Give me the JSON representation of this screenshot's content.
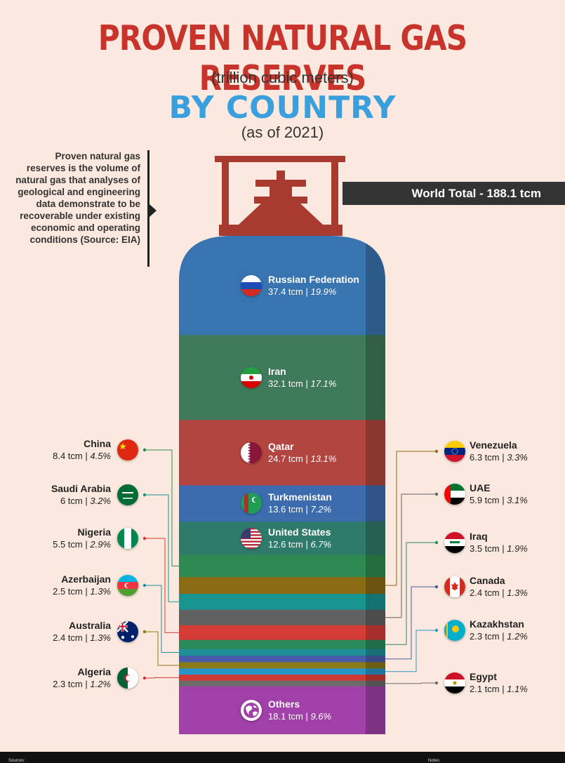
{
  "header": {
    "title": "PROVEN NATURAL GAS RESERVES",
    "subtitle": "(trillion cubic meters)",
    "by_country": "BY COUNTRY",
    "as_of": "(as of 2021)"
  },
  "note": "Proven natural gas reserves is the volume of natural gas that analyses of geological and engineering data demonstrate to be recoverable under existing economic and operating conditions (Source: EIA)",
  "world_total": "World Total - 188.1 tcm",
  "footer": {
    "sources": "Sources:",
    "notes": "Notes:"
  },
  "colors": {
    "accent_red": "#c8342b",
    "accent_blue": "#3aa0dd",
    "valve": "#a83a30"
  },
  "chart_data": {
    "type": "stacked-bar",
    "unit": "tcm",
    "total": 188.1,
    "series": [
      {
        "name": "Russian Federation",
        "value": 37.4,
        "value_label": "37.4 tcm",
        "pct": "19.9%",
        "color": "#3874b0",
        "flag": "russia-flag"
      },
      {
        "name": "Iran",
        "value": 32.1,
        "value_label": "32.1 tcm",
        "pct": "17.1%",
        "color": "#3f7a5a",
        "flag": "iran-flag"
      },
      {
        "name": "Qatar",
        "value": 24.7,
        "value_label": "24.7 tcm",
        "pct": "13.1%",
        "color": "#b34540",
        "flag": "qatar-flag"
      },
      {
        "name": "Turkmenistan",
        "value": 13.6,
        "value_label": "13.6 tcm",
        "pct": "7.2%",
        "color": "#3c6cae",
        "flag": "turkmenistan-flag"
      },
      {
        "name": "United States",
        "value": 12.6,
        "value_label": "12.6 tcm",
        "pct": "6.7%",
        "color": "#2f7b6b",
        "flag": "usa-flag"
      },
      {
        "name": "China",
        "value": 8.4,
        "value_label": "8.4 tcm",
        "pct": "4.5%",
        "color": "#2e8a50",
        "flag": "china-flag"
      },
      {
        "name": "Venezuela",
        "value": 6.3,
        "value_label": "6.3 tcm",
        "pct": "3.3%",
        "color": "#8a6c15",
        "flag": "venezuela-flag"
      },
      {
        "name": "Saudi Arabia",
        "value": 6,
        "value_label": "6 tcm",
        "pct": "3.2%",
        "color": "#1a9490",
        "flag": "saudi-flag"
      },
      {
        "name": "UAE",
        "value": 5.9,
        "value_label": "5.9 tcm",
        "pct": "3.1%",
        "color": "#616161",
        "flag": "uae-flag"
      },
      {
        "name": "Nigeria",
        "value": 5.5,
        "value_label": "5.5 tcm",
        "pct": "2.9%",
        "color": "#d63b36",
        "flag": "nigeria-flag"
      },
      {
        "name": "Iraq",
        "value": 3.5,
        "value_label": "3.5 tcm",
        "pct": "1.9%",
        "color": "#2a8a5c",
        "flag": "iraq-flag"
      },
      {
        "name": "Azerbaijan",
        "value": 2.5,
        "value_label": "2.5 tcm",
        "pct": "1.3%",
        "color": "#1e8f99",
        "flag": "azerbaijan-flag"
      },
      {
        "name": "Canada",
        "value": 2.4,
        "value_label": "2.4 tcm",
        "pct": "1.3%",
        "color": "#4a5ca8",
        "flag": "canada-flag"
      },
      {
        "name": "Australia",
        "value": 2.4,
        "value_label": "2.4 tcm",
        "pct": "1.3%",
        "color": "#8a7a1a",
        "flag": "australia-flag"
      },
      {
        "name": "Kazakhstan",
        "value": 2.3,
        "value_label": "2.3 tcm",
        "pct": "1.2%",
        "color": "#2a95c8",
        "flag": "kazakhstan-flag"
      },
      {
        "name": "Algeria",
        "value": 2.3,
        "value_label": "2.3 tcm",
        "pct": "1.2%",
        "color": "#cf3a35",
        "flag": "algeria-flag"
      },
      {
        "name": "Egypt",
        "value": 2.1,
        "value_label": "2.1 tcm",
        "pct": "1.1%",
        "color": "#6b6b6b",
        "flag": "egypt-flag"
      },
      {
        "name": "Others",
        "value": 18.1,
        "value_label": "18.1 tcm",
        "pct": "9.6%",
        "color": "#a140a8",
        "flag": "globe-icon"
      }
    ]
  }
}
